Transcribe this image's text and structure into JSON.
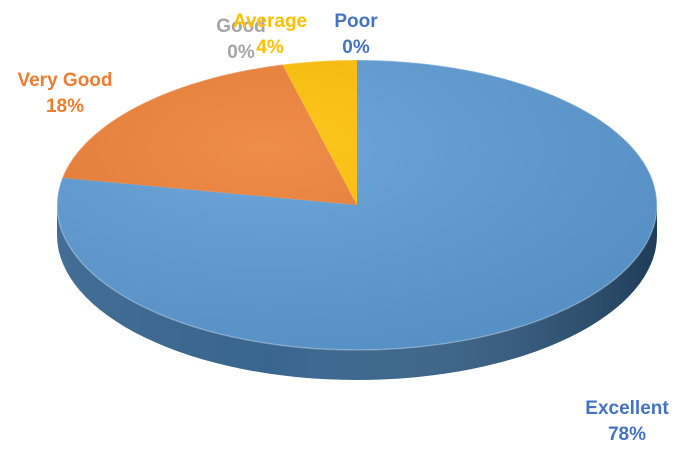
{
  "chart_data": {
    "type": "pie",
    "style": "3d",
    "title": "",
    "start_angle_deg": 0,
    "direction": "clockwise",
    "slices": [
      {
        "label": "Excellent",
        "value": 78,
        "value_label": "78%",
        "color": "#5B9BD5",
        "side_color": "#2E5D88"
      },
      {
        "label": "Very Good",
        "value": 18,
        "value_label": "18%",
        "color": "#ED7D31",
        "side_color": "#9E4E16"
      },
      {
        "label": "Good",
        "value": 0,
        "value_label": "0%",
        "color": "#A5A5A5",
        "side_color": "#6E6E6E"
      },
      {
        "label": "Average",
        "value": 4,
        "value_label": "4%",
        "color": "#FFC000",
        "side_color": "#A67C00"
      },
      {
        "label": "Poor",
        "value": 0,
        "value_label": "0%",
        "color": "#4472C4",
        "side_color": "#2B4B85"
      }
    ],
    "label_colors": {
      "Excellent": "#4472C4",
      "Very Good": "#ED7D31",
      "Good": "#A5A5A5",
      "Average": "#FFC000",
      "Poor": "#4472C4"
    }
  }
}
